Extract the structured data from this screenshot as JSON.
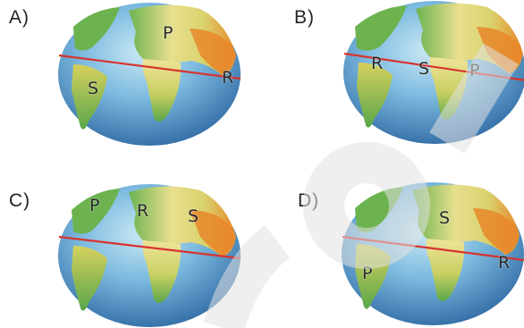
{
  "options": [
    {
      "label": "A)",
      "markers": [
        {
          "letter": "P"
        },
        {
          "letter": "R"
        },
        {
          "letter": "S"
        }
      ]
    },
    {
      "label": "B)",
      "markers": [
        {
          "letter": "R"
        },
        {
          "letter": "S"
        },
        {
          "letter": "P"
        }
      ]
    },
    {
      "label": "C)",
      "markers": [
        {
          "letter": "P"
        },
        {
          "letter": "R"
        },
        {
          "letter": "S"
        }
      ]
    },
    {
      "label": "D)",
      "markers": [
        {
          "letter": "S"
        },
        {
          "letter": "P"
        },
        {
          "letter": "R"
        }
      ]
    }
  ],
  "colors": {
    "ocean_light": "#9fd0e8",
    "ocean_dark": "#2f6fa8",
    "land_green": "#5aa64a",
    "land_yellow": "#e9e08a",
    "land_orange": "#e88a2c",
    "equator_line": "#d8332f",
    "watermark": "#dcdcdc"
  }
}
